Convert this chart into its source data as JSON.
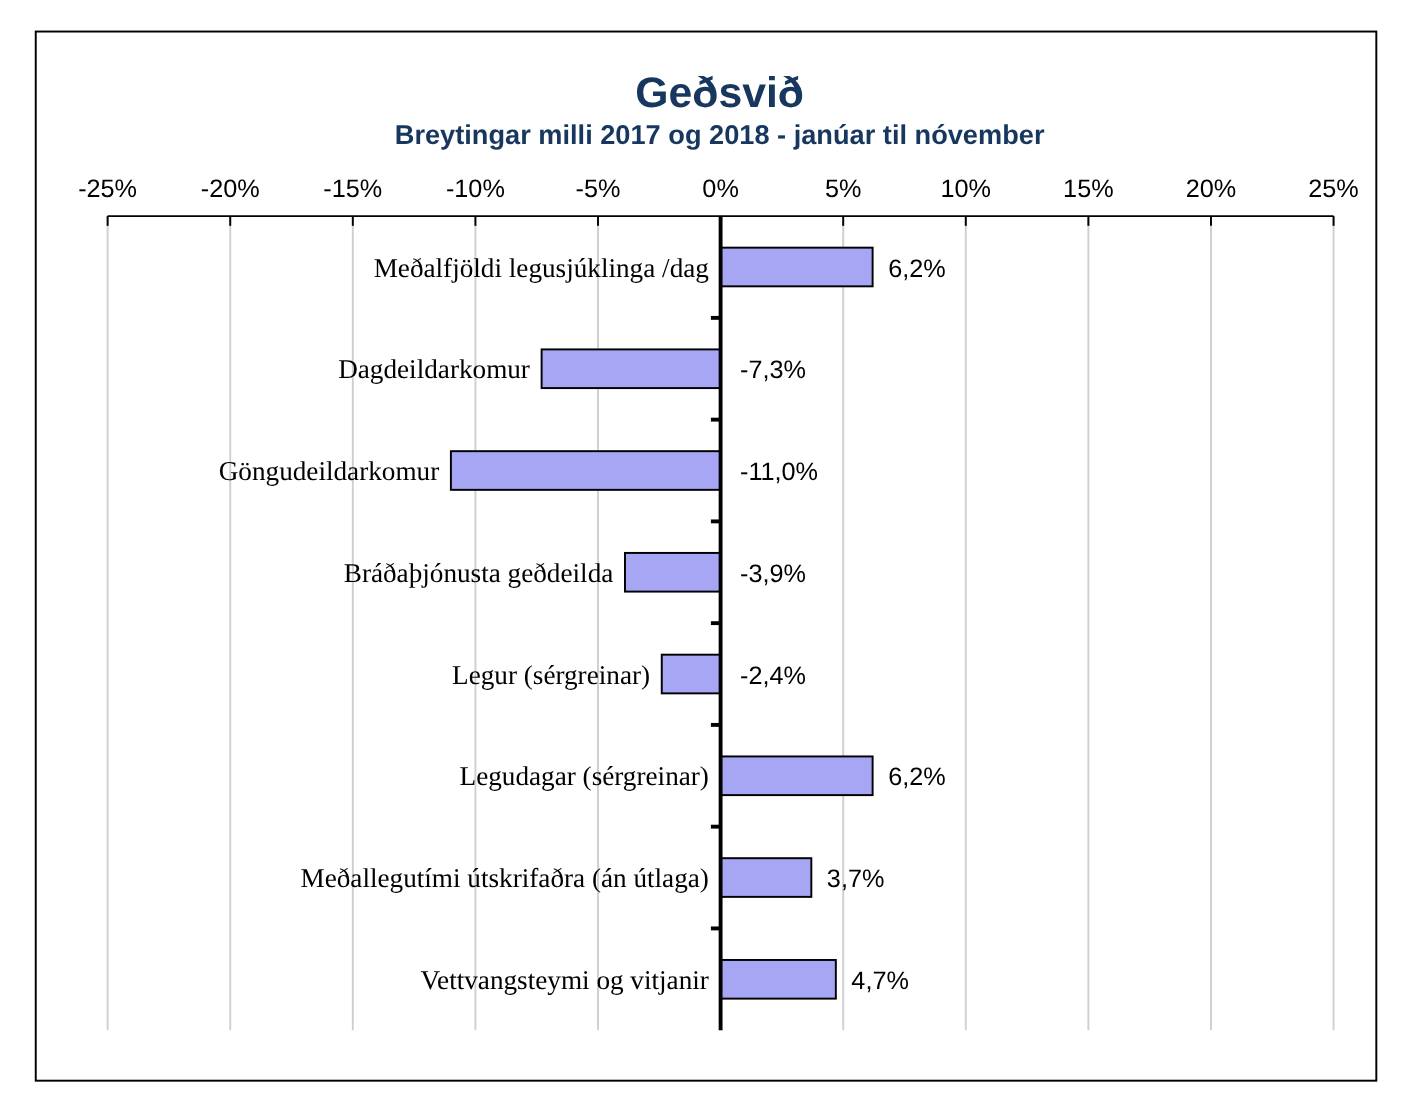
{
  "chart_data": {
    "type": "bar",
    "orientation": "horizontal",
    "title": "Geðsvið",
    "subtitle": "Breytingar milli 2017 og 2018 - janúar til nóvember",
    "categories": [
      "Meðalfjöldi legusjúklinga /dag",
      "Dagdeildarkomur",
      "Göngudeildarkomur",
      "Bráðaþjónusta geðdeilda",
      "Legur (sérgreinar)",
      "Legudagar (sérgreinar)",
      "Meðallegutími útskrifaðra (án útlaga)",
      "Vettvangsteymi og vitjanir"
    ],
    "values": [
      6.2,
      -7.3,
      -11.0,
      -3.9,
      -2.4,
      6.2,
      3.7,
      4.7
    ],
    "value_labels": [
      "6,2%",
      "-7,3%",
      "-11,0%",
      "-3,9%",
      "-2,4%",
      "6,2%",
      "3,7%",
      "4,7%"
    ],
    "color": "#a6a6f5",
    "xlim": [
      -25,
      25
    ],
    "xticks": [
      {
        "value": -25,
        "label": "-25%"
      },
      {
        "value": -20,
        "label": "-20%"
      },
      {
        "value": -15,
        "label": "-15%"
      },
      {
        "value": -10,
        "label": "-10%"
      },
      {
        "value": -5,
        "label": "-5%"
      },
      {
        "value": 0,
        "label": "0%"
      },
      {
        "value": 5,
        "label": "5%"
      },
      {
        "value": 10,
        "label": "10%"
      },
      {
        "value": 15,
        "label": "15%"
      },
      {
        "value": 20,
        "label": "20%"
      },
      {
        "value": 25,
        "label": "25%"
      }
    ],
    "grid": "x"
  }
}
